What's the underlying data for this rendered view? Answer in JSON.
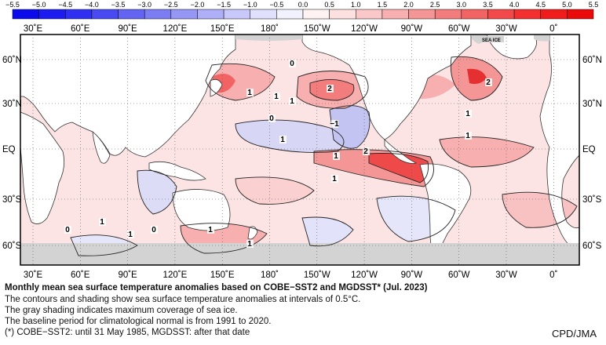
{
  "colorbar": {
    "ticks": [
      "−5.5",
      "−5.0",
      "−4.5",
      "−4.0",
      "−3.5",
      "−3.0",
      "−2.5",
      "−2.0",
      "−1.5",
      "−1.0",
      "−0.5",
      "0.0",
      "0.5",
      "1.0",
      "1.5",
      "2.0",
      "2.5",
      "3.0",
      "3.5",
      "4.0",
      "4.5",
      "5.0",
      "5.5"
    ],
    "colors": [
      "#0a0aeb",
      "#1c1cf0",
      "#3030f2",
      "#4a4af2",
      "#6464f2",
      "#7d7df3",
      "#9696f5",
      "#afafF7",
      "#c8c8fa",
      "#e0e0fc",
      "#f2f2fe",
      "#fff2f2",
      "#fde0e0",
      "#fac8c8",
      "#f7afaf",
      "#f59696",
      "#f37d7d",
      "#f26464",
      "#f24a4a",
      "#f23030",
      "#f01c1c",
      "#eb0a0a"
    ]
  },
  "map": {
    "top_lon_labels": [
      "30˚E",
      "60˚E",
      "90˚E",
      "120˚E",
      "150˚E",
      "180˚",
      "150˚W",
      "120˚W",
      "90˚W",
      "60˚W",
      "30˚W",
      "0˚"
    ],
    "bottom_lon_labels": [
      "30˚E",
      "60˚E",
      "90˚E",
      "120˚E",
      "150˚E",
      "180˚",
      "150˚W",
      "120˚W",
      "90˚W",
      "60˚W",
      "30˚W",
      "0˚"
    ],
    "left_lat_labels": [
      "60˚N",
      "30˚N",
      "EQ",
      "30˚S",
      "60˚S"
    ],
    "right_lat_labels": [
      "60˚N",
      "30˚N",
      "EQ",
      "30˚S",
      "60˚S"
    ],
    "sea_ice_label": "SEA ICE",
    "contour_labels": [
      "0",
      "1",
      "2",
      "1",
      "1",
      "0",
      "−1",
      "1",
      "2",
      "2",
      "1",
      "1",
      "1",
      "0",
      "1",
      "1",
      "0",
      "1",
      "1",
      "1"
    ],
    "colors": {
      "land": "#ffffff",
      "ice": "#d3d3d3",
      "ocean_base": "#fde4e4",
      "warm": "#f59696",
      "hot": "#e43030",
      "cool": "#d7d7f5"
    }
  },
  "caption": {
    "title": "Monthly mean sea surface temperature anomalies based on COBE−SST2 and MGDSST* (Jul. 2023)",
    "line1": "The contours and shading show sea surface temperature anomalies at intervals of 0.5°C.",
    "line2": "The gray shading indicates maximum coverage of sea ice.",
    "line3": "The baseline period for climatological normal is from 1991 to 2020.",
    "line4": "(*) COBE−SST2: until 31 May 1985, MGDSST: after that date"
  },
  "credit": "CPD/JMA"
}
